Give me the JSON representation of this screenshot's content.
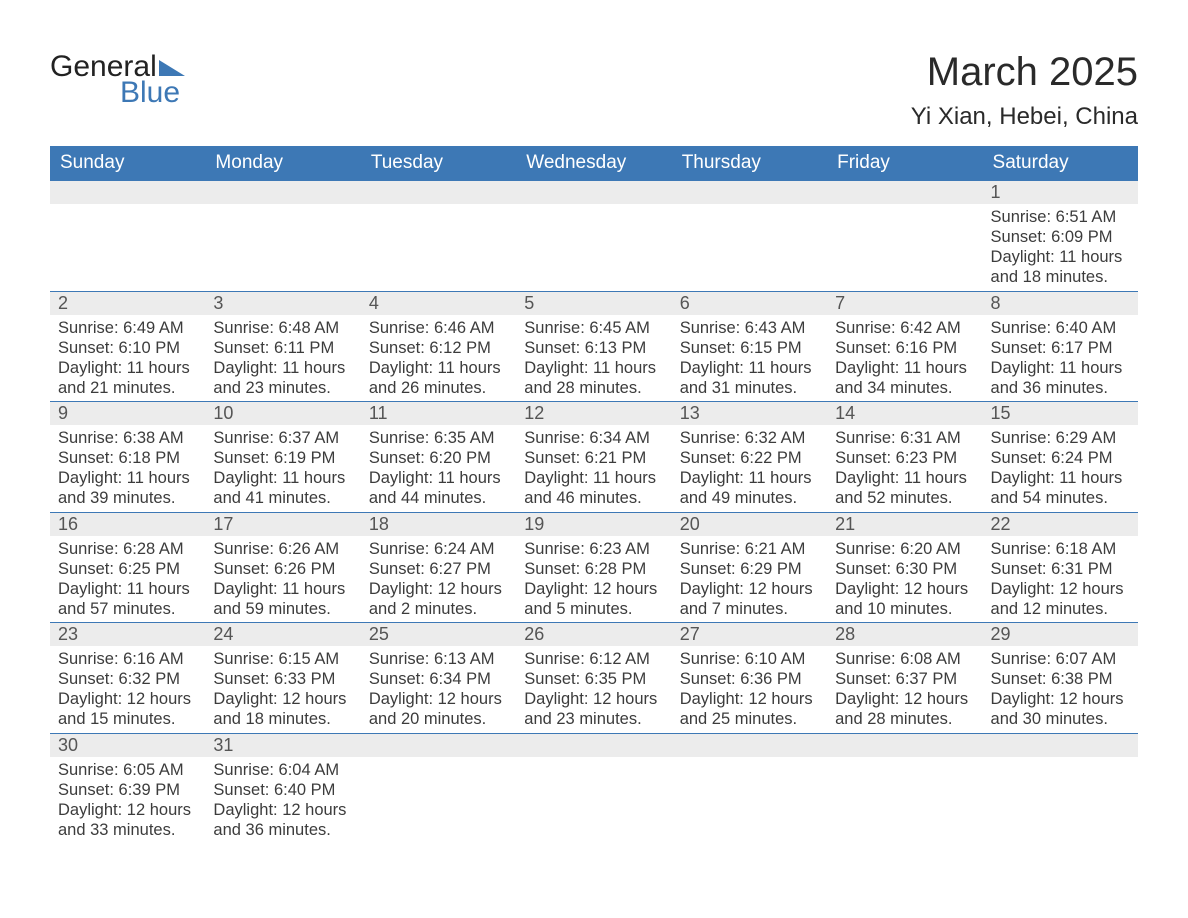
{
  "logo": {
    "line1": "General",
    "line2": "Blue",
    "tri_color": "#3d78b5"
  },
  "title": "March 2025",
  "subtitle": "Yi Xian, Hebei, China",
  "colors": {
    "header_bg": "#3d78b5",
    "header_fg": "#ffffff",
    "daynum_bg": "#ececec",
    "text": "#3c3c3c",
    "border": "#3d78b5",
    "page_bg": "#ffffff"
  },
  "day_headers": [
    "Sunday",
    "Monday",
    "Tuesday",
    "Wednesday",
    "Thursday",
    "Friday",
    "Saturday"
  ],
  "weeks": [
    [
      null,
      null,
      null,
      null,
      null,
      null,
      {
        "n": "1",
        "sr": "6:51 AM",
        "ss": "6:09 PM",
        "dl": "11 hours and 18 minutes."
      }
    ],
    [
      {
        "n": "2",
        "sr": "6:49 AM",
        "ss": "6:10 PM",
        "dl": "11 hours and 21 minutes."
      },
      {
        "n": "3",
        "sr": "6:48 AM",
        "ss": "6:11 PM",
        "dl": "11 hours and 23 minutes."
      },
      {
        "n": "4",
        "sr": "6:46 AM",
        "ss": "6:12 PM",
        "dl": "11 hours and 26 minutes."
      },
      {
        "n": "5",
        "sr": "6:45 AM",
        "ss": "6:13 PM",
        "dl": "11 hours and 28 minutes."
      },
      {
        "n": "6",
        "sr": "6:43 AM",
        "ss": "6:15 PM",
        "dl": "11 hours and 31 minutes."
      },
      {
        "n": "7",
        "sr": "6:42 AM",
        "ss": "6:16 PM",
        "dl": "11 hours and 34 minutes."
      },
      {
        "n": "8",
        "sr": "6:40 AM",
        "ss": "6:17 PM",
        "dl": "11 hours and 36 minutes."
      }
    ],
    [
      {
        "n": "9",
        "sr": "6:38 AM",
        "ss": "6:18 PM",
        "dl": "11 hours and 39 minutes."
      },
      {
        "n": "10",
        "sr": "6:37 AM",
        "ss": "6:19 PM",
        "dl": "11 hours and 41 minutes."
      },
      {
        "n": "11",
        "sr": "6:35 AM",
        "ss": "6:20 PM",
        "dl": "11 hours and 44 minutes."
      },
      {
        "n": "12",
        "sr": "6:34 AM",
        "ss": "6:21 PM",
        "dl": "11 hours and 46 minutes."
      },
      {
        "n": "13",
        "sr": "6:32 AM",
        "ss": "6:22 PM",
        "dl": "11 hours and 49 minutes."
      },
      {
        "n": "14",
        "sr": "6:31 AM",
        "ss": "6:23 PM",
        "dl": "11 hours and 52 minutes."
      },
      {
        "n": "15",
        "sr": "6:29 AM",
        "ss": "6:24 PM",
        "dl": "11 hours and 54 minutes."
      }
    ],
    [
      {
        "n": "16",
        "sr": "6:28 AM",
        "ss": "6:25 PM",
        "dl": "11 hours and 57 minutes."
      },
      {
        "n": "17",
        "sr": "6:26 AM",
        "ss": "6:26 PM",
        "dl": "11 hours and 59 minutes."
      },
      {
        "n": "18",
        "sr": "6:24 AM",
        "ss": "6:27 PM",
        "dl": "12 hours and 2 minutes."
      },
      {
        "n": "19",
        "sr": "6:23 AM",
        "ss": "6:28 PM",
        "dl": "12 hours and 5 minutes."
      },
      {
        "n": "20",
        "sr": "6:21 AM",
        "ss": "6:29 PM",
        "dl": "12 hours and 7 minutes."
      },
      {
        "n": "21",
        "sr": "6:20 AM",
        "ss": "6:30 PM",
        "dl": "12 hours and 10 minutes."
      },
      {
        "n": "22",
        "sr": "6:18 AM",
        "ss": "6:31 PM",
        "dl": "12 hours and 12 minutes."
      }
    ],
    [
      {
        "n": "23",
        "sr": "6:16 AM",
        "ss": "6:32 PM",
        "dl": "12 hours and 15 minutes."
      },
      {
        "n": "24",
        "sr": "6:15 AM",
        "ss": "6:33 PM",
        "dl": "12 hours and 18 minutes."
      },
      {
        "n": "25",
        "sr": "6:13 AM",
        "ss": "6:34 PM",
        "dl": "12 hours and 20 minutes."
      },
      {
        "n": "26",
        "sr": "6:12 AM",
        "ss": "6:35 PM",
        "dl": "12 hours and 23 minutes."
      },
      {
        "n": "27",
        "sr": "6:10 AM",
        "ss": "6:36 PM",
        "dl": "12 hours and 25 minutes."
      },
      {
        "n": "28",
        "sr": "6:08 AM",
        "ss": "6:37 PM",
        "dl": "12 hours and 28 minutes."
      },
      {
        "n": "29",
        "sr": "6:07 AM",
        "ss": "6:38 PM",
        "dl": "12 hours and 30 minutes."
      }
    ],
    [
      {
        "n": "30",
        "sr": "6:05 AM",
        "ss": "6:39 PM",
        "dl": "12 hours and 33 minutes."
      },
      {
        "n": "31",
        "sr": "6:04 AM",
        "ss": "6:40 PM",
        "dl": "12 hours and 36 minutes."
      },
      null,
      null,
      null,
      null,
      null
    ]
  ],
  "labels": {
    "sunrise": "Sunrise:",
    "sunset": "Sunset:",
    "daylight": "Daylight:"
  }
}
